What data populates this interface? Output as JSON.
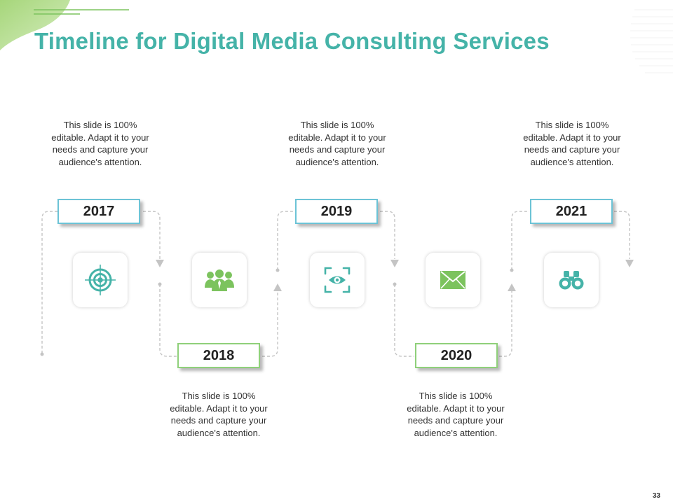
{
  "slide": {
    "title": "Timeline for Digital Media Consulting Services",
    "page_number": "33"
  },
  "timeline": {
    "milestones": [
      {
        "year": "2017",
        "text": "This slide is 100% editable. Adapt it to your needs and capture your audience's attention.",
        "icon": "target-icon"
      },
      {
        "year": "2018",
        "text": "This slide is 100% editable. Adapt it to your needs and capture your audience's attention.",
        "icon": "team-icon"
      },
      {
        "year": "2019",
        "text": "This slide is 100% editable. Adapt it to your needs and capture your audience's attention.",
        "icon": "eye-icon"
      },
      {
        "year": "2020",
        "text": "This slide is 100% editable. Adapt it to your needs and capture your audience's attention.",
        "icon": "envelope-icon"
      },
      {
        "year": "2021",
        "text": "This slide is 100% editable. Adapt it to your needs and capture your audience's attention.",
        "icon": "binoculars-icon"
      }
    ]
  },
  "colors": {
    "title": "#45b3a8",
    "teal_accent": "#45b3a8",
    "green_accent": "#7cc35e",
    "connector": "#c4c4c4"
  }
}
